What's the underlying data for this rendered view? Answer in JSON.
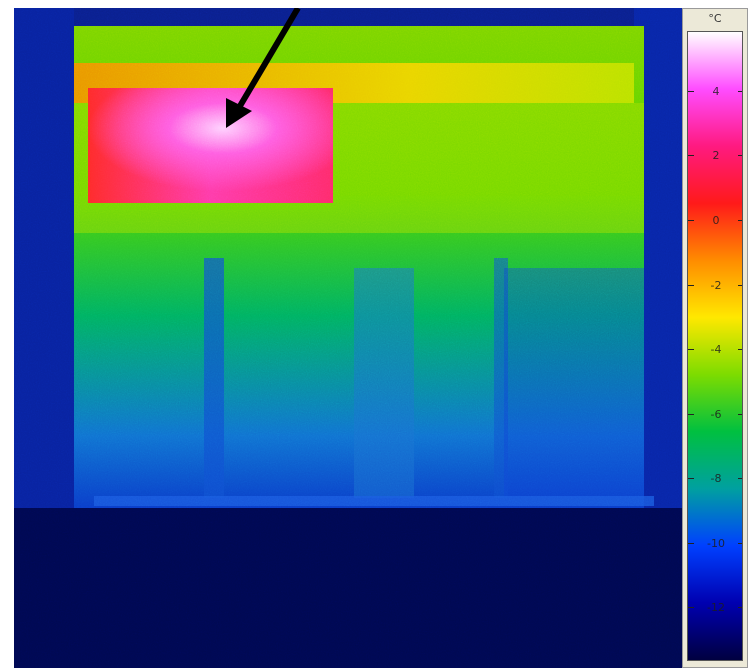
{
  "colorbar": {
    "unit": "°C",
    "ticks": [
      "4",
      "2",
      "0",
      "-2",
      "-4",
      "-6",
      "-8",
      "-10",
      "-12"
    ],
    "colors": [
      "#ffffff",
      "#ff4cff",
      "#ff1a80",
      "#ff1a1a",
      "#ff8c00",
      "#ffe800",
      "#7ddc00",
      "#00c040",
      "#00a0a0",
      "#0040ff",
      "#0000b0",
      "#000040"
    ]
  },
  "annotation": {
    "arrow_color": "#000000",
    "arrow_icon": "arrow-down-left-icon"
  }
}
